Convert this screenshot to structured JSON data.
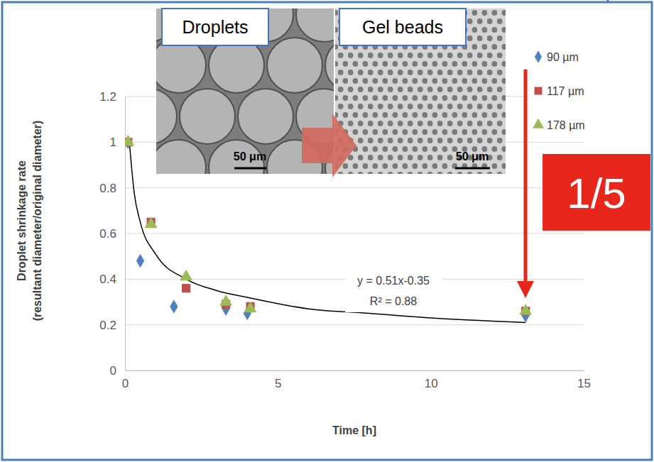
{
  "chart_data": {
    "type": "scatter",
    "x_label": "Time [h]",
    "y_label": [
      "Droplet shrinkage rate",
      "(resultant diameter/original diameter)"
    ],
    "xlim": [
      0,
      15
    ],
    "xticks": [
      0,
      5,
      10,
      15
    ],
    "ylim": [
      0,
      1.2
    ],
    "yticks": [
      0,
      0.2,
      0.4,
      0.6,
      0.8,
      1,
      1.2
    ],
    "grid": "y",
    "legend": "top-right",
    "series": [
      {
        "name": "90 µm",
        "color": "#4f81bd",
        "marker": "diamond",
        "x": [
          0.1,
          0.5,
          1.6,
          3.3,
          4.0,
          13.1
        ],
        "values": [
          1.0,
          0.48,
          0.28,
          0.27,
          0.25,
          0.24
        ]
      },
      {
        "name": "117 µm",
        "color": "#c0504d",
        "marker": "square",
        "x": [
          0.1,
          0.85,
          2.0,
          3.3,
          4.1,
          13.1
        ],
        "values": [
          1.0,
          0.65,
          0.36,
          0.29,
          0.28,
          0.26
        ]
      },
      {
        "name": "178 µm",
        "color": "#9bbb59",
        "marker": "triangle",
        "x": [
          0.1,
          0.85,
          2.0,
          3.3,
          4.1,
          13.1
        ],
        "values": [
          1.0,
          0.64,
          0.41,
          0.3,
          0.27,
          0.26
        ]
      }
    ],
    "trendline": {
      "type": "line",
      "color": "#000000",
      "line_style": "solid",
      "x": [
        0.15,
        0.3,
        0.5,
        1,
        2,
        3,
        4,
        6,
        8,
        10,
        13.1
      ],
      "values": [
        0.99,
        0.78,
        0.65,
        0.51,
        0.4,
        0.35,
        0.32,
        0.27,
        0.25,
        0.23,
        0.21
      ],
      "label": [
        "y = 0.51x-0.35",
        "R² = 0.88"
      ]
    },
    "annotations": {
      "images": [
        "Droplets",
        "Gel beads"
      ],
      "scale_bars": [
        "50 μm",
        "50 μm"
      ],
      "ratio": "1/5",
      "ratio_color": "#e8271c"
    }
  }
}
